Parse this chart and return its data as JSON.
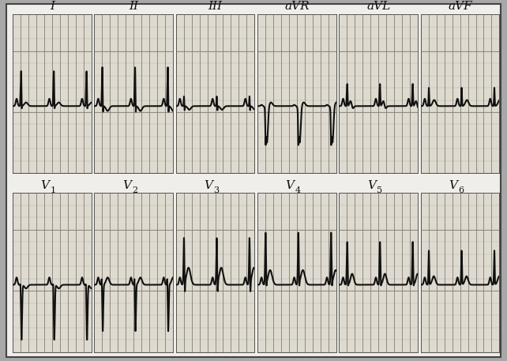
{
  "outer_bg": "#a8a8a8",
  "paper_bg": "#f0eeea",
  "panel_bg": "#e8e4dc",
  "grid_minor_color": "#b0a898",
  "grid_major_color": "#888078",
  "ecg_color": "#111111",
  "border_color": "#555550",
  "label_color": "#111111",
  "label_fontsize": 11,
  "labels_row1": [
    "I",
    "II",
    "III",
    "aVR",
    "aVL",
    "aVF"
  ],
  "labels_row2_base": [
    "V",
    "V",
    "V",
    "V",
    "V",
    "V"
  ],
  "labels_row2_sub": [
    "1",
    "2",
    "3",
    "4",
    "5",
    "6"
  ],
  "ecg_lw": 1.5,
  "n_cols": 6,
  "n_rows": 2,
  "duration": 2.0,
  "fs": 500,
  "baseline_y": 0.0,
  "ylim": [
    -0.55,
    0.75
  ],
  "heart_rate": 72
}
